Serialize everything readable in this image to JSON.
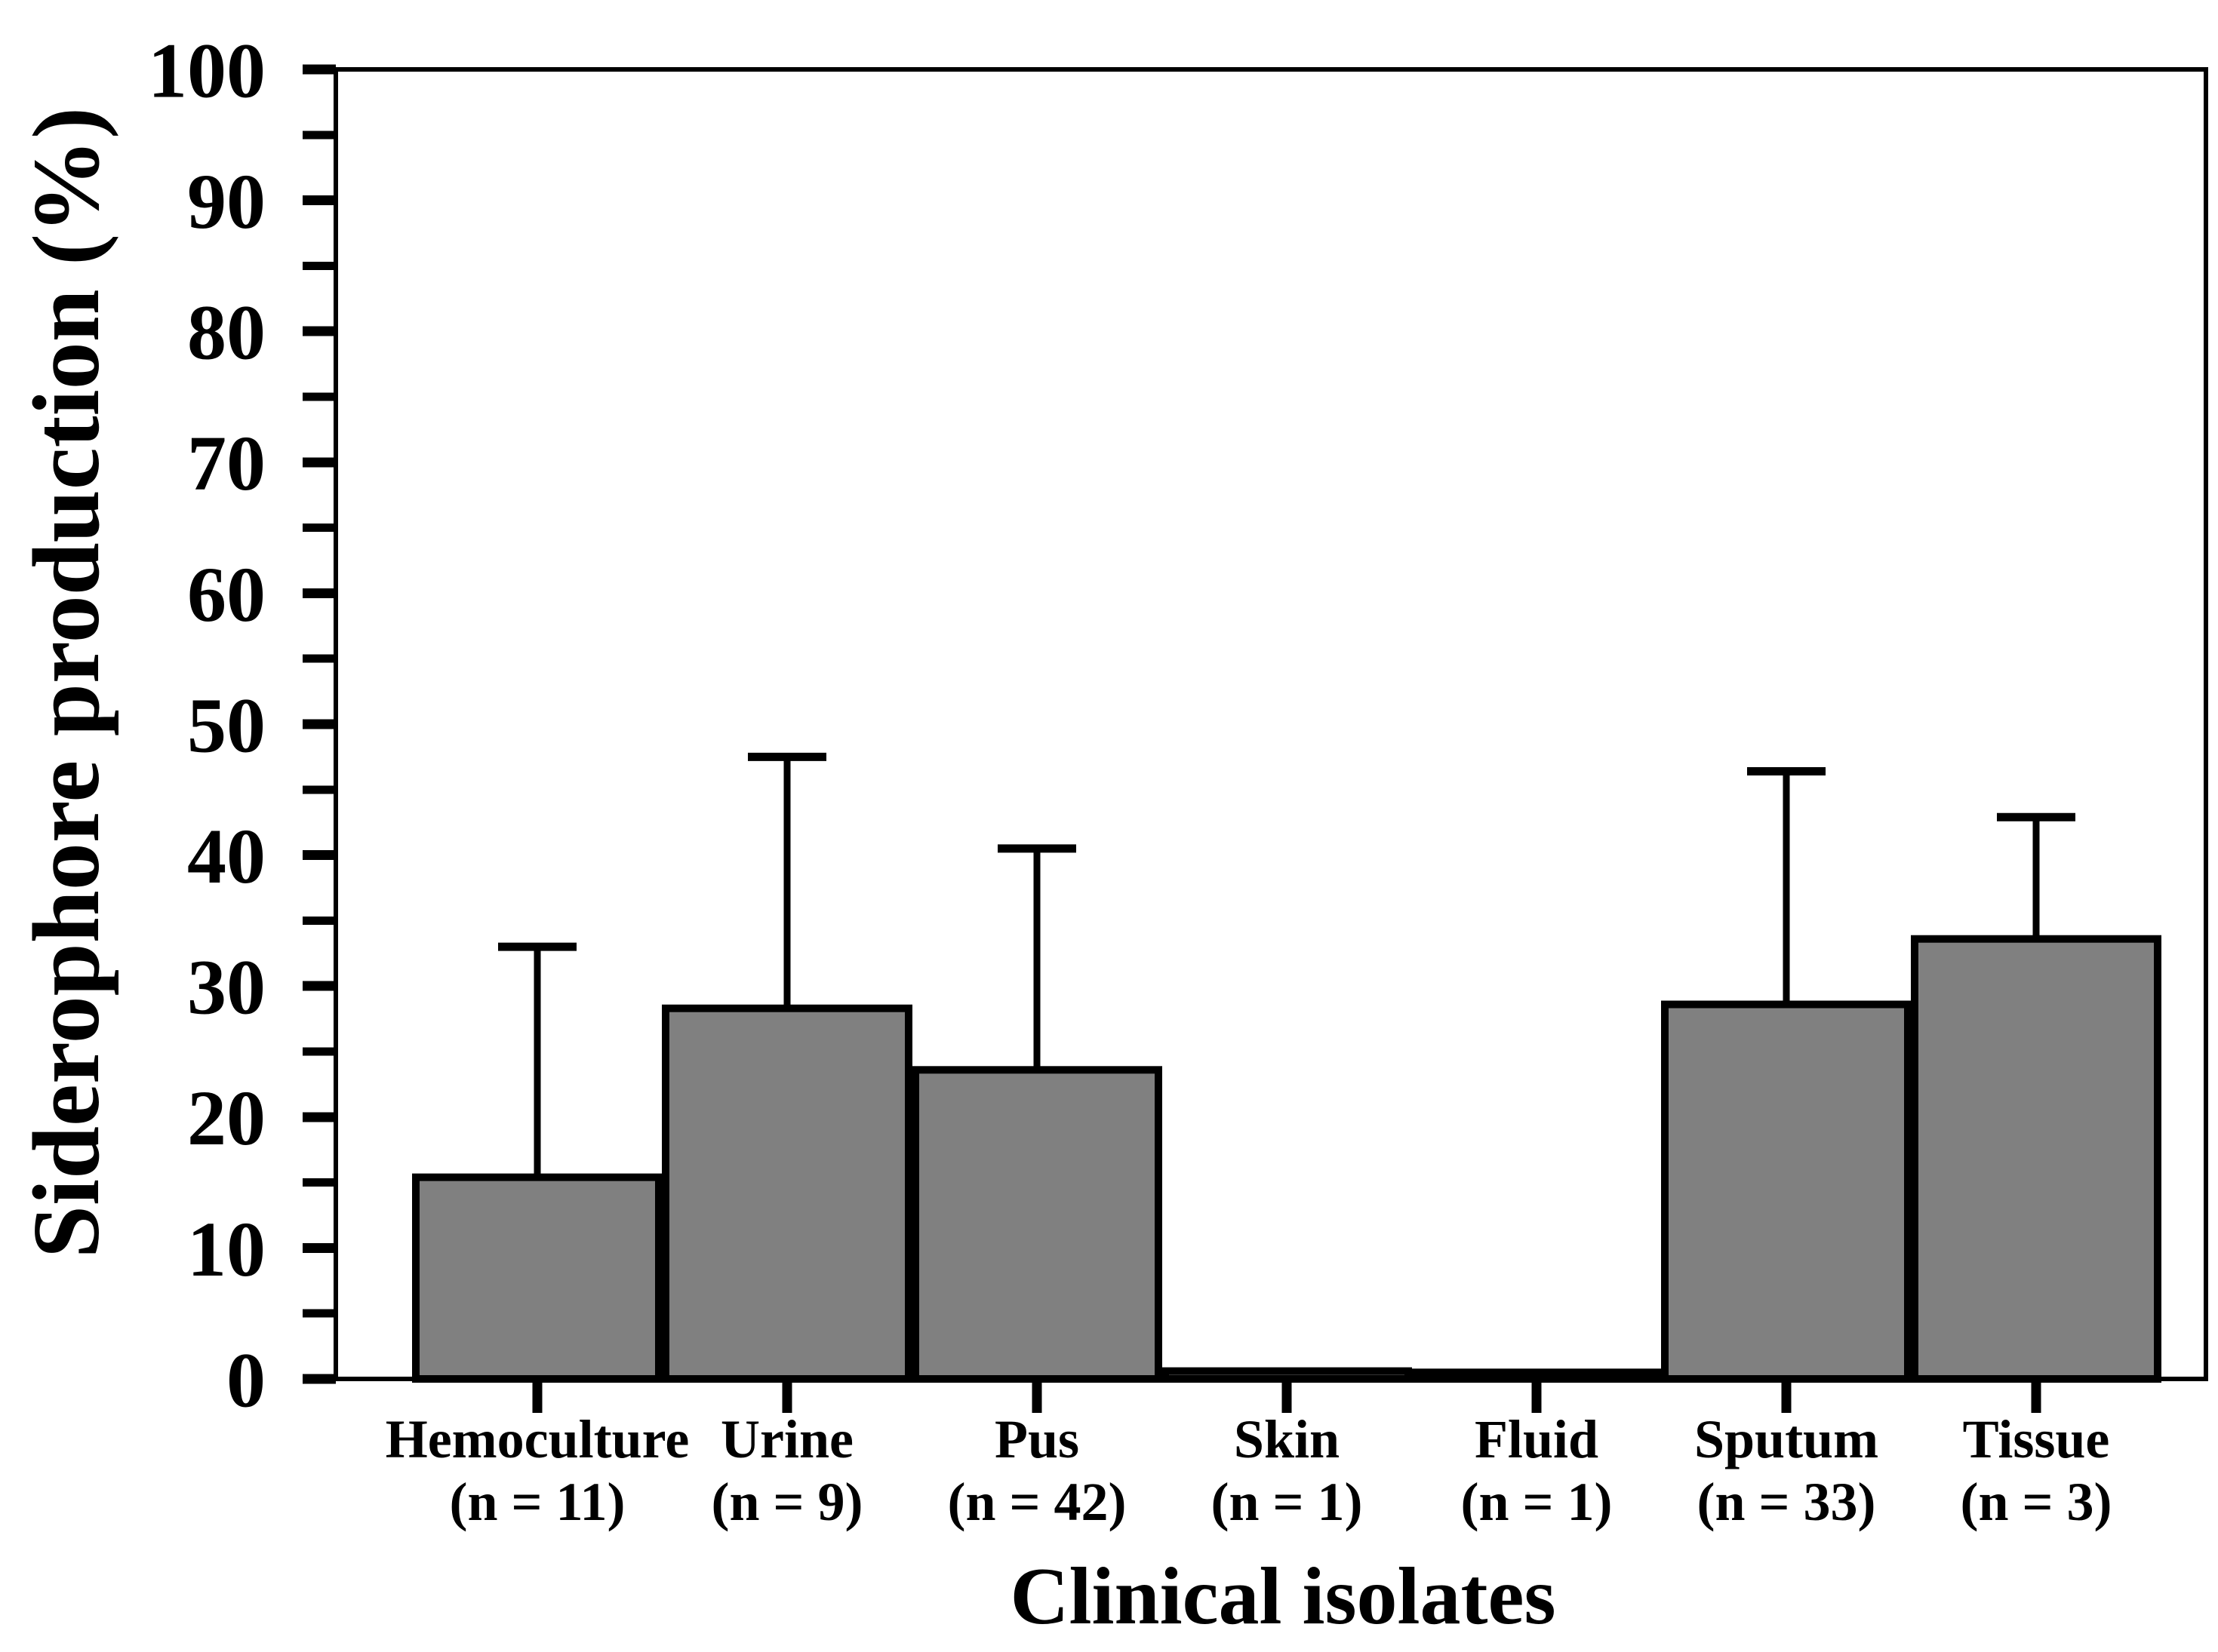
{
  "chart_data": {
    "type": "bar",
    "title": "",
    "xlabel": "Clinical isolates",
    "ylabel": "Siderophore production (%)",
    "ylim": [
      0,
      100
    ],
    "y_major_step": 10,
    "y_minor_step": 5,
    "grid": false,
    "legend": null,
    "bar_fill": "#808080",
    "bar_border": "#000000",
    "error_bar_direction": "upper",
    "categories": [
      "Hemoculture",
      "Urine",
      "Pus",
      "Skin",
      "Fluid",
      "Sputum",
      "Tissue"
    ],
    "sublabels": [
      "(n = 11)",
      "(n = 9)",
      "(n = 42)",
      "(n = 1)",
      "(n = 1)",
      "(n = 33)",
      "(n = 3)"
    ],
    "values": [
      15.4,
      28.3,
      23.6,
      0.6,
      0.5,
      28.6,
      33.6
    ],
    "errors": [
      17.6,
      19.2,
      16.9,
      0,
      0,
      17.8,
      9.3
    ],
    "y_tick_labels": [
      "0",
      "10",
      "20",
      "30",
      "40",
      "50",
      "60",
      "70",
      "80",
      "90",
      "100"
    ]
  }
}
